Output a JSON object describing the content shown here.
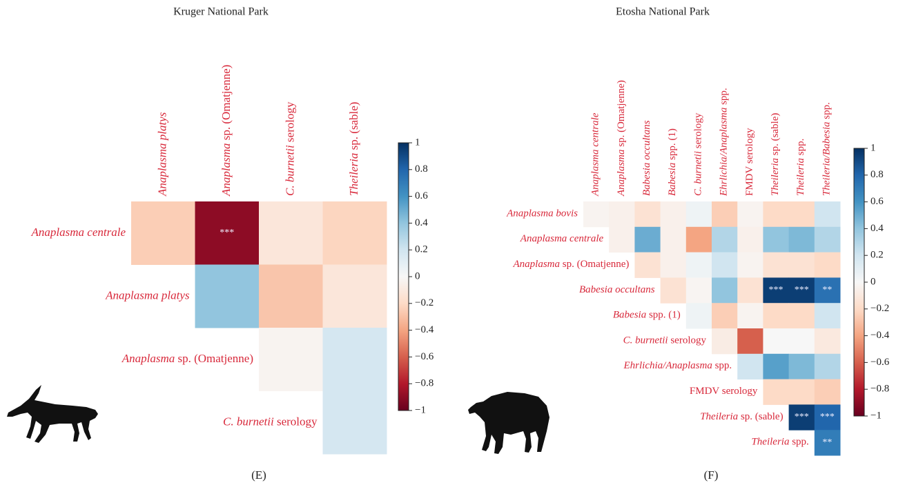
{
  "chart_data": [
    {
      "type": "heatmap",
      "title": "Kruger National Park",
      "panel": "(E)",
      "colormap": [
        "#67001f",
        "#b2182b",
        "#d6604d",
        "#f4a582",
        "#fddbc7",
        "#f7f7f7",
        "#d1e5f0",
        "#92c5de",
        "#4393c3",
        "#2166ac",
        "#053061"
      ],
      "columns": [
        [
          {
            "text": "Anaplasma platys",
            "italic": true
          }
        ],
        [
          {
            "text": "Anaplasma",
            "italic": true
          },
          {
            "text": " sp. (Omatjenne)"
          }
        ],
        [
          {
            "text": "C. burnetii",
            "italic": true
          },
          {
            "text": " serology"
          }
        ],
        [
          {
            "text": "Theileria",
            "italic": true
          },
          {
            "text": " sp. (sable)"
          }
        ]
      ],
      "rows": [
        [
          {
            "text": "Anaplasma centrale",
            "italic": true
          }
        ],
        [
          {
            "text": "Anaplasma platys",
            "italic": true
          }
        ],
        [
          {
            "text": "Anaplasma",
            "italic": true
          },
          {
            "text": " sp. (Omatjenne)"
          }
        ],
        [
          {
            "text": "C. burnetii",
            "italic": true
          },
          {
            "text": " serology"
          }
        ]
      ],
      "values": [
        [
          -0.25,
          -0.9,
          -0.12,
          -0.22
        ],
        [
          null,
          0.4,
          -0.28,
          -0.12
        ],
        [
          null,
          null,
          -0.03,
          0.18
        ],
        [
          null,
          null,
          null,
          0.18
        ]
      ],
      "annotations": [
        [
          null,
          "***",
          null,
          null
        ],
        [
          null,
          null,
          null,
          null
        ],
        [
          null,
          null,
          null,
          null
        ],
        [
          null,
          null,
          null,
          null
        ]
      ],
      "clim": [
        -1,
        1
      ],
      "cticks": [
        1,
        0.8,
        0.6,
        0.4,
        0.2,
        0,
        {
          "value": -0.2,
          "label": "−0.2"
        },
        {
          "value": -0.4,
          "label": "−0.4"
        },
        {
          "value": -0.6,
          "label": "−0.6"
        },
        {
          "value": -0.8,
          "label": "−0.8"
        },
        {
          "value": -1,
          "label": "−1"
        }
      ]
    },
    {
      "type": "heatmap",
      "title": "Etosha National Park",
      "panel": "(F)",
      "colormap": [
        "#67001f",
        "#b2182b",
        "#d6604d",
        "#f4a582",
        "#fddbc7",
        "#f7f7f7",
        "#d1e5f0",
        "#92c5de",
        "#4393c3",
        "#2166ac",
        "#053061"
      ],
      "columns": [
        [
          {
            "text": "Anaplasma centrale",
            "italic": true
          }
        ],
        [
          {
            "text": "Anaplasma",
            "italic": true
          },
          {
            "text": " sp. (Omatjenne)"
          }
        ],
        [
          {
            "text": "Babesia occultans",
            "italic": true
          }
        ],
        [
          {
            "text": "Babesia",
            "italic": true
          },
          {
            "text": " spp. (1)"
          }
        ],
        [
          {
            "text": "C. burnetii",
            "italic": true
          },
          {
            "text": " serology"
          }
        ],
        [
          {
            "text": "Ehrlichia/Anaplasma",
            "italic": true
          },
          {
            "text": " spp."
          }
        ],
        [
          {
            "text": "FMDV serology"
          }
        ],
        [
          {
            "text": "Theileria",
            "italic": true
          },
          {
            "text": " sp. (sable)"
          }
        ],
        [
          {
            "text": "Theileria",
            "italic": true
          },
          {
            "text": " spp."
          }
        ],
        [
          {
            "text": "Theileria/Babesia",
            "italic": true
          },
          {
            "text": " spp."
          }
        ]
      ],
      "rows": [
        [
          {
            "text": "Anaplasma bovis",
            "italic": true
          }
        ],
        [
          {
            "text": "Anaplasma centrale",
            "italic": true
          }
        ],
        [
          {
            "text": "Anaplasma",
            "italic": true
          },
          {
            "text": " sp. (Omatjenne)"
          }
        ],
        [
          {
            "text": "Babesia occultans",
            "italic": true
          }
        ],
        [
          {
            "text": "Babesia",
            "italic": true
          },
          {
            "text": " spp. (1)"
          }
        ],
        [
          {
            "text": "C. burnetii",
            "italic": true
          },
          {
            "text": " serology"
          }
        ],
        [
          {
            "text": "Ehrlichia/Anaplasma",
            "italic": true
          },
          {
            "text": " spp."
          }
        ],
        [
          {
            "text": "FMDV serology"
          }
        ],
        [
          {
            "text": "Theileria",
            "italic": true
          },
          {
            "text": " sp. (sable)"
          }
        ],
        [
          {
            "text": "Theileria",
            "italic": true
          },
          {
            "text": " spp."
          }
        ]
      ],
      "values": [
        [
          -0.03,
          -0.05,
          -0.15,
          -0.05,
          0.05,
          -0.25,
          -0.03,
          -0.2,
          -0.2,
          0.2
        ],
        [
          null,
          -0.05,
          0.5,
          -0.05,
          -0.4,
          0.3,
          -0.05,
          0.4,
          0.45,
          0.3
        ],
        [
          null,
          null,
          -0.15,
          -0.05,
          0.05,
          0.2,
          -0.03,
          -0.15,
          -0.15,
          -0.2
        ],
        [
          null,
          null,
          null,
          -0.15,
          -0.02,
          0.4,
          -0.15,
          0.95,
          0.95,
          0.75
        ],
        [
          null,
          null,
          null,
          null,
          0.05,
          -0.25,
          -0.03,
          -0.2,
          -0.2,
          0.2
        ],
        [
          null,
          null,
          null,
          null,
          null,
          -0.08,
          -0.6,
          0,
          0,
          -0.1
        ],
        [
          null,
          null,
          null,
          null,
          null,
          null,
          0.2,
          0.55,
          0.45,
          0.3
        ],
        [
          null,
          null,
          null,
          null,
          null,
          null,
          null,
          -0.2,
          -0.2,
          -0.25
        ],
        [
          null,
          null,
          null,
          null,
          null,
          null,
          null,
          null,
          0.95,
          0.8
        ],
        [
          null,
          null,
          null,
          null,
          null,
          null,
          null,
          null,
          null,
          0.7
        ]
      ],
      "annotations": [
        [
          null,
          null,
          null,
          null,
          null,
          null,
          null,
          null,
          null,
          null
        ],
        [
          null,
          null,
          null,
          null,
          null,
          null,
          null,
          null,
          null,
          null
        ],
        [
          null,
          null,
          null,
          null,
          null,
          null,
          null,
          null,
          null,
          null
        ],
        [
          null,
          null,
          null,
          null,
          null,
          null,
          null,
          "***",
          "***",
          "**"
        ],
        [
          null,
          null,
          null,
          null,
          null,
          null,
          null,
          null,
          null,
          null
        ],
        [
          null,
          null,
          null,
          null,
          null,
          null,
          null,
          null,
          null,
          null
        ],
        [
          null,
          null,
          null,
          null,
          null,
          null,
          null,
          null,
          null,
          null
        ],
        [
          null,
          null,
          null,
          null,
          null,
          null,
          null,
          null,
          null,
          null
        ],
        [
          null,
          null,
          null,
          null,
          null,
          null,
          null,
          null,
          "***",
          "***"
        ],
        [
          null,
          null,
          null,
          null,
          null,
          null,
          null,
          null,
          null,
          "**"
        ]
      ],
      "clim": [
        -1,
        1
      ],
      "cticks": [
        1,
        0.8,
        0.6,
        0.4,
        0.2,
        0,
        {
          "value": -0.2,
          "label": "−0.2"
        },
        {
          "value": -0.4,
          "label": "−0.4"
        },
        {
          "value": -0.6,
          "label": "−0.6"
        },
        {
          "value": -0.8,
          "label": "−0.8"
        },
        {
          "value": -1,
          "label": "−1"
        }
      ]
    }
  ]
}
